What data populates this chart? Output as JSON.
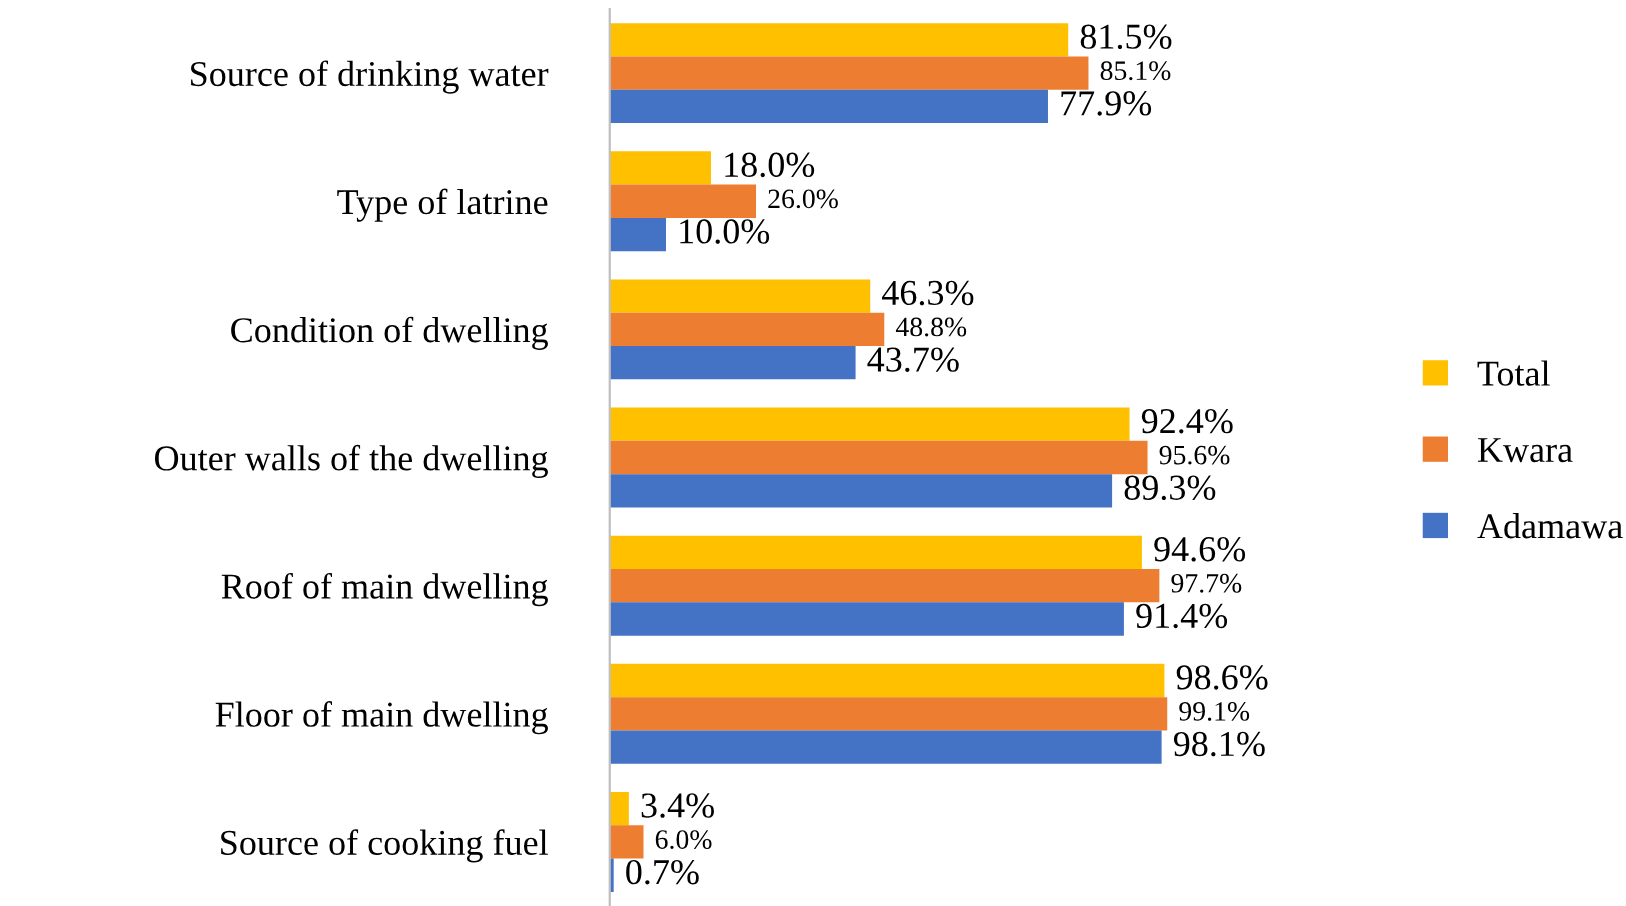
{
  "chart_data": {
    "type": "bar",
    "orientation": "horizontal",
    "legend": "right",
    "grid": false,
    "categories": [
      "Source of drinking water",
      "Type of latrine",
      "Condition of dwelling",
      "Outer walls of the dwelling",
      "Roof of main dwelling",
      "Floor of main dwelling",
      "Source of cooking fuel"
    ],
    "series": [
      {
        "name": "Total",
        "color": "#ffc000",
        "values": [
          81.5,
          18.0,
          46.3,
          92.4,
          94.6,
          98.6,
          3.4
        ],
        "value_labels": [
          "81.5%",
          "18.0%",
          "46.3%",
          "92.4%",
          "94.6%",
          "98.6%",
          "3.4%"
        ]
      },
      {
        "name": "Kwara",
        "color": "#ed7d31",
        "values": [
          85.1,
          26.0,
          48.8,
          95.6,
          97.7,
          99.1,
          6.0
        ],
        "value_labels": [
          "85.1%",
          "26.0%",
          "48.8%",
          "95.6%",
          "97.7%",
          "99.1%",
          "6.0%"
        ]
      },
      {
        "name": "Adamawa",
        "color": "#4472c4",
        "values": [
          77.9,
          10.0,
          43.7,
          89.3,
          91.4,
          98.1,
          0.7
        ],
        "value_labels": [
          "77.9%",
          "10.0%",
          "43.7%",
          "89.3%",
          "91.4%",
          "98.1%",
          "0.7%"
        ]
      }
    ]
  }
}
